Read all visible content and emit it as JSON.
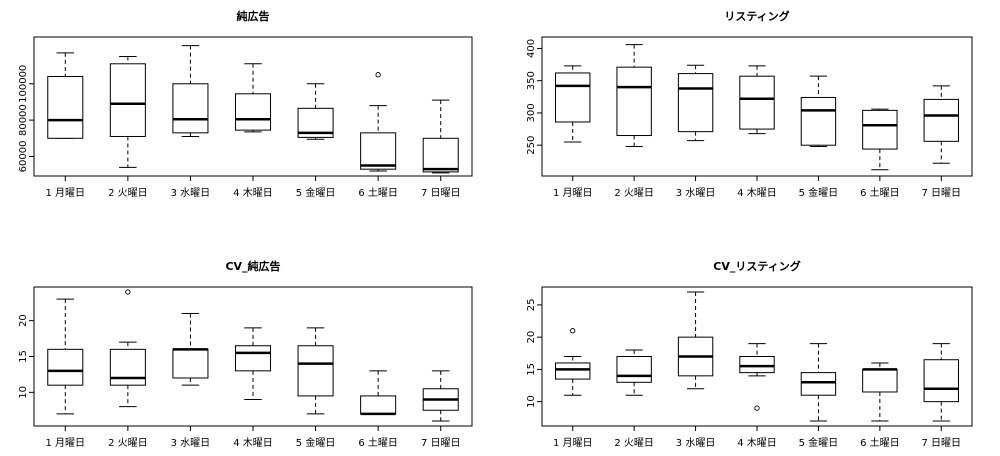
{
  "chart_data": [
    {
      "type": "boxplot",
      "title": "純広告",
      "categories": [
        "1 月曜日",
        "2 火曜日",
        "3 水曜日",
        "4 木曜日",
        "5 金曜日",
        "6 土曜日",
        "7 日曜日"
      ],
      "yticks": [
        60000,
        80000,
        100000
      ],
      "ylim": [
        52000,
        123000
      ],
      "boxes": [
        {
          "min": 70000,
          "q1": 70000,
          "median": 80000,
          "q3": 104000,
          "max": 117000,
          "outliers": []
        },
        {
          "min": 54000,
          "q1": 71000,
          "median": 89000,
          "q3": 111000,
          "max": 115000,
          "outliers": []
        },
        {
          "min": 71000,
          "q1": 73000,
          "median": 80500,
          "q3": 100000,
          "max": 121000,
          "outliers": []
        },
        {
          "min": 73500,
          "q1": 74500,
          "median": 80500,
          "q3": 94500,
          "max": 111000,
          "outliers": []
        },
        {
          "min": 69500,
          "q1": 70500,
          "median": 73000,
          "q3": 86500,
          "max": 100000,
          "outliers": []
        },
        {
          "min": 52000,
          "q1": 53000,
          "median": 55000,
          "q3": 73000,
          "max": 88000,
          "outliers": [
            105000
          ]
        },
        {
          "min": 51000,
          "q1": 51500,
          "median": 53000,
          "q3": 70000,
          "max": 91000,
          "outliers": []
        }
      ]
    },
    {
      "type": "boxplot",
      "title": "リスティング",
      "categories": [
        "1 月曜日",
        "2 火曜日",
        "3 水曜日",
        "4 木曜日",
        "5 金曜日",
        "6 土曜日",
        "7 日曜日"
      ],
      "yticks": [
        250,
        300,
        350,
        400
      ],
      "ylim": [
        210,
        410
      ],
      "boxes": [
        {
          "min": 255,
          "q1": 286,
          "median": 342,
          "q3": 362,
          "max": 373,
          "outliers": []
        },
        {
          "min": 248,
          "q1": 265,
          "median": 340,
          "q3": 371,
          "max": 406,
          "outliers": []
        },
        {
          "min": 257,
          "q1": 271,
          "median": 338,
          "q3": 361,
          "max": 374,
          "outliers": []
        },
        {
          "min": 268,
          "q1": 275,
          "median": 322,
          "q3": 357,
          "max": 373,
          "outliers": []
        },
        {
          "min": 248,
          "q1": 250,
          "median": 304,
          "q3": 324,
          "max": 357,
          "outliers": []
        },
        {
          "min": 212,
          "q1": 244,
          "median": 281,
          "q3": 304,
          "max": 306,
          "outliers": []
        },
        {
          "min": 222,
          "q1": 256,
          "median": 296,
          "q3": 321,
          "max": 342,
          "outliers": []
        }
      ]
    },
    {
      "type": "boxplot",
      "title": "CV_純広告",
      "categories": [
        "1 月曜日",
        "2 火曜日",
        "3 水曜日",
        "4 木曜日",
        "5 金曜日",
        "6 土曜日",
        "7 日曜日"
      ],
      "yticks": [
        10,
        15,
        20
      ],
      "ylim": [
        6,
        24
      ],
      "boxes": [
        {
          "min": 7,
          "q1": 11,
          "median": 13,
          "q3": 16,
          "max": 23,
          "outliers": []
        },
        {
          "min": 8,
          "q1": 11,
          "median": 12,
          "q3": 16,
          "max": 17,
          "outliers": [
            24
          ]
        },
        {
          "min": 11,
          "q1": 12,
          "median": 16,
          "q3": 16,
          "max": 21,
          "outliers": []
        },
        {
          "min": 9,
          "q1": 13,
          "median": 15.5,
          "q3": 16.5,
          "max": 19,
          "outliers": []
        },
        {
          "min": 7,
          "q1": 9.5,
          "median": 14,
          "q3": 16.5,
          "max": 19,
          "outliers": []
        },
        {
          "min": 7,
          "q1": 7,
          "median": 7,
          "q3": 9.5,
          "max": 13,
          "outliers": []
        },
        {
          "min": 6,
          "q1": 7.5,
          "median": 9,
          "q3": 10.5,
          "max": 13,
          "outliers": []
        }
      ]
    },
    {
      "type": "boxplot",
      "title": "CV_リスティング",
      "categories": [
        "1 月曜日",
        "2 火曜日",
        "3 水曜日",
        "4 木曜日",
        "5 金曜日",
        "6 土曜日",
        "7 日曜日"
      ],
      "yticks": [
        10,
        15,
        20,
        25
      ],
      "ylim": [
        7,
        27
      ],
      "boxes": [
        {
          "min": 11,
          "q1": 13.5,
          "median": 15,
          "q3": 16,
          "max": 17,
          "outliers": [
            21
          ]
        },
        {
          "min": 11,
          "q1": 13,
          "median": 14,
          "q3": 17,
          "max": 18,
          "outliers": []
        },
        {
          "min": 12,
          "q1": 14,
          "median": 17,
          "q3": 20,
          "max": 27,
          "outliers": []
        },
        {
          "min": 14,
          "q1": 14.5,
          "median": 15.5,
          "q3": 17,
          "max": 19,
          "outliers": [
            9
          ]
        },
        {
          "min": 7,
          "q1": 11,
          "median": 13,
          "q3": 14.5,
          "max": 19,
          "outliers": []
        },
        {
          "min": 7,
          "q1": 11.5,
          "median": 15,
          "q3": 15,
          "max": 16,
          "outliers": []
        },
        {
          "min": 7,
          "q1": 10,
          "median": 12,
          "q3": 16.5,
          "max": 19,
          "outliers": []
        }
      ]
    }
  ]
}
